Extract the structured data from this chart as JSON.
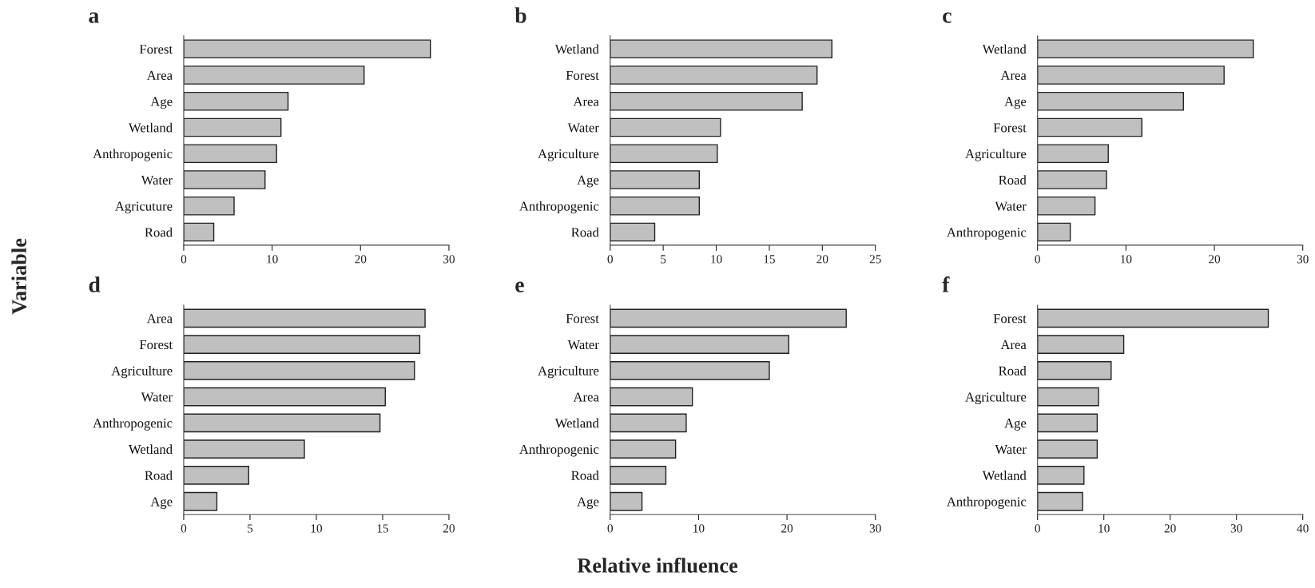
{
  "chart_data": [
    {
      "type": "bar",
      "title": "a",
      "orientation": "horizontal",
      "ylabel": "Variable",
      "categories": [
        "Forest",
        "Area",
        "Age",
        "Wetland",
        "Anthropogenic",
        "Water",
        "Agricuture",
        "Road"
      ],
      "values": [
        27.9,
        20.4,
        11.8,
        11.0,
        10.5,
        9.2,
        5.7,
        3.4
      ],
      "color": "#c0c0c0",
      "xlim": [
        0,
        30
      ],
      "xticks": [
        0,
        10,
        20,
        30
      ],
      "grid": false
    },
    {
      "type": "bar",
      "title": "b",
      "orientation": "horizontal",
      "categories": [
        "Wetland",
        "Forest",
        "Area",
        "Water",
        "Agriculture",
        "Age",
        "Anthropogenic",
        "Road"
      ],
      "values": [
        20.9,
        19.5,
        18.1,
        10.4,
        10.1,
        8.4,
        8.4,
        4.2
      ],
      "color": "#c0c0c0",
      "xlim": [
        0,
        25
      ],
      "xticks": [
        0,
        5,
        10,
        15,
        20,
        25
      ],
      "grid": false
    },
    {
      "type": "bar",
      "title": "c",
      "orientation": "horizontal",
      "categories": [
        "Wetland",
        "Area",
        "Age",
        "Forest",
        "Agriculture",
        "Road",
        "Water",
        "Anthropogenic"
      ],
      "values": [
        24.4,
        21.1,
        16.5,
        11.8,
        8.0,
        7.8,
        6.5,
        3.7
      ],
      "color": "#c0c0c0",
      "xlim": [
        0,
        30
      ],
      "xticks": [
        0,
        10,
        20,
        30
      ],
      "grid": false
    },
    {
      "type": "bar",
      "title": "d",
      "orientation": "horizontal",
      "categories": [
        "Area",
        "Forest",
        "Agriculture",
        "Water",
        "Anthropogenic",
        "Wetland",
        "Road",
        "Age"
      ],
      "values": [
        18.2,
        17.8,
        17.4,
        15.2,
        14.8,
        9.1,
        4.9,
        2.5
      ],
      "color": "#c0c0c0",
      "xlim": [
        0,
        20
      ],
      "xticks": [
        0,
        5,
        10,
        15,
        20
      ],
      "grid": false
    },
    {
      "type": "bar",
      "title": "e",
      "orientation": "horizontal",
      "xlabel": "Relative influence",
      "categories": [
        "Forest",
        "Water",
        "Agriculture",
        "Area",
        "Wetland",
        "Anthropogenic",
        "Road",
        "Age"
      ],
      "values": [
        26.7,
        20.2,
        18.0,
        9.3,
        8.6,
        7.4,
        6.3,
        3.6
      ],
      "color": "#c0c0c0",
      "xlim": [
        0,
        30
      ],
      "xticks": [
        0,
        10,
        20,
        30
      ],
      "grid": false
    },
    {
      "type": "bar",
      "title": "f",
      "orientation": "horizontal",
      "categories": [
        "Forest",
        "Area",
        "Road",
        "Agriculture",
        "Age",
        "Water",
        "Wetland",
        "Anthropogenic"
      ],
      "values": [
        34.8,
        13.0,
        11.1,
        9.2,
        9.0,
        9.0,
        7.0,
        6.8
      ],
      "color": "#c0c0c0",
      "xlim": [
        0,
        40
      ],
      "xticks": [
        0,
        10,
        20,
        30,
        40
      ],
      "grid": false
    }
  ]
}
